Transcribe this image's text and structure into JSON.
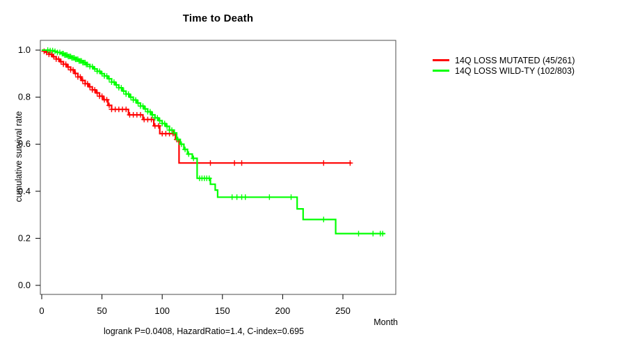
{
  "page": {
    "background": "#ffffff"
  },
  "chart_data": {
    "type": "line",
    "subtype": "kaplan-meier-step-curve",
    "title": "Time to Death",
    "xlabel": "Month",
    "ylabel": "cumulative survival rate",
    "footer": "logrank P=0.0408, HazardRatio=1.4, C-index=0.695",
    "xlim": [
      0,
      295
    ],
    "ylim": [
      0.0,
      1.0
    ],
    "x_ticks": [
      0,
      50,
      100,
      150,
      200,
      250
    ],
    "y_ticks": [
      0.0,
      0.2,
      0.4,
      0.6,
      0.8,
      1.0
    ],
    "grid": false,
    "legend_position": "right-outside",
    "axis_color": "#000000",
    "box_color": "#4d4d4d",
    "series": [
      {
        "name": "14Q LOSS MUTATED (45/261)",
        "color": "#ff0000",
        "events_total": "45/261",
        "steps": [
          [
            0,
            1.0
          ],
          [
            2,
            0.995
          ],
          [
            4,
            0.99
          ],
          [
            6,
            0.982
          ],
          [
            9,
            0.972
          ],
          [
            12,
            0.962
          ],
          [
            15,
            0.951
          ],
          [
            18,
            0.94
          ],
          [
            21,
            0.928
          ],
          [
            24,
            0.916
          ],
          [
            27,
            0.901
          ],
          [
            30,
            0.886
          ],
          [
            33,
            0.871
          ],
          [
            36,
            0.857
          ],
          [
            39,
            0.844
          ],
          [
            42,
            0.831
          ],
          [
            45,
            0.818
          ],
          [
            48,
            0.804
          ],
          [
            51,
            0.789
          ],
          [
            55,
            0.765
          ],
          [
            58,
            0.748
          ],
          [
            72,
            0.725
          ],
          [
            84,
            0.705
          ],
          [
            93,
            0.678
          ],
          [
            98,
            0.645
          ],
          [
            111,
            0.62
          ],
          [
            114,
            0.52
          ],
          [
            257,
            0.52
          ]
        ],
        "censor_marks": [
          2,
          4,
          6,
          8,
          10,
          12,
          14,
          16,
          18,
          20,
          22,
          24,
          26,
          28,
          30,
          32,
          34,
          36,
          38,
          40,
          42,
          44,
          46,
          48,
          50,
          52,
          54,
          56,
          58,
          61,
          64,
          67,
          70,
          73,
          76,
          79,
          82,
          85,
          88,
          91,
          94,
          97,
          100,
          103,
          106,
          109,
          112,
          140,
          160,
          166,
          234,
          256
        ]
      },
      {
        "name": "14Q LOSS WILD-TY (102/803)",
        "color": "#00ff00",
        "events_total": "102/803",
        "steps": [
          [
            0,
            1.0
          ],
          [
            7,
            0.998
          ],
          [
            10,
            0.995
          ],
          [
            13,
            0.99
          ],
          [
            16,
            0.985
          ],
          [
            19,
            0.979
          ],
          [
            22,
            0.973
          ],
          [
            25,
            0.967
          ],
          [
            28,
            0.961
          ],
          [
            31,
            0.954
          ],
          [
            34,
            0.947
          ],
          [
            37,
            0.939
          ],
          [
            40,
            0.93
          ],
          [
            43,
            0.92
          ],
          [
            46,
            0.91
          ],
          [
            49,
            0.9
          ],
          [
            52,
            0.89
          ],
          [
            55,
            0.878
          ],
          [
            58,
            0.864
          ],
          [
            61,
            0.852
          ],
          [
            64,
            0.84
          ],
          [
            67,
            0.826
          ],
          [
            70,
            0.813
          ],
          [
            73,
            0.8
          ],
          [
            76,
            0.788
          ],
          [
            79,
            0.775
          ],
          [
            82,
            0.762
          ],
          [
            85,
            0.75
          ],
          [
            88,
            0.738
          ],
          [
            91,
            0.725
          ],
          [
            94,
            0.712
          ],
          [
            97,
            0.7
          ],
          [
            100,
            0.688
          ],
          [
            103,
            0.676
          ],
          [
            106,
            0.66
          ],
          [
            110,
            0.648
          ],
          [
            112,
            0.62
          ],
          [
            115,
            0.6
          ],
          [
            118,
            0.578
          ],
          [
            121,
            0.558
          ],
          [
            125,
            0.54
          ],
          [
            129,
            0.455
          ],
          [
            140,
            0.43
          ],
          [
            144,
            0.405
          ],
          [
            146,
            0.375
          ],
          [
            212,
            0.325
          ],
          [
            217,
            0.28
          ],
          [
            244,
            0.22
          ],
          [
            285,
            0.22
          ]
        ],
        "censor_marks": [
          5,
          7,
          9,
          11,
          13,
          15,
          17,
          18,
          19,
          20,
          21,
          22,
          23,
          24,
          25,
          26,
          27,
          28,
          29,
          30,
          31,
          32,
          33,
          34,
          35,
          36,
          37,
          38,
          40,
          42,
          44,
          46,
          48,
          50,
          52,
          54,
          56,
          58,
          60,
          62,
          64,
          66,
          68,
          70,
          72,
          74,
          76,
          78,
          80,
          82,
          84,
          86,
          88,
          90,
          92,
          94,
          96,
          98,
          100,
          102,
          104,
          106,
          108,
          110,
          113,
          116,
          119,
          122,
          126,
          131,
          133,
          135,
          137,
          139,
          158,
          162,
          166,
          169,
          189,
          207,
          234,
          263,
          275,
          281,
          283
        ]
      }
    ]
  }
}
